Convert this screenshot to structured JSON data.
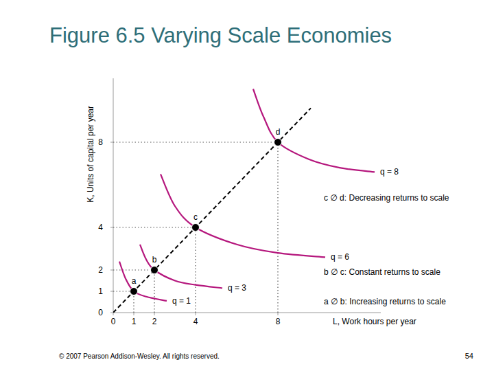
{
  "chart_data": {
    "type": "line",
    "title": "Figure 6.5 Varying Scale Economies",
    "xlabel": "L, Work hours per year",
    "ylabel": "K, Units of capital per year",
    "xlim": [
      0,
      13
    ],
    "ylim": [
      0,
      11
    ],
    "xticks": [
      0,
      1,
      2,
      4,
      8
    ],
    "yticks": [
      0,
      1,
      2,
      4,
      8
    ],
    "grid": false,
    "series": [
      {
        "name": "q = 1",
        "color": "#b5177d",
        "x": [
          0.3,
          0.6,
          1,
          1.6,
          2.6
        ],
        "values": [
          2.4,
          1.6,
          1,
          0.75,
          0.55
        ]
      },
      {
        "name": "q = 3",
        "color": "#b5177d",
        "x": [
          1.3,
          1.6,
          2,
          3,
          4,
          5.3
        ],
        "values": [
          3.2,
          2.5,
          2,
          1.5,
          1.3,
          1.15
        ]
      },
      {
        "name": "q = 6",
        "color": "#b5177d",
        "x": [
          2.3,
          3,
          4,
          6,
          8,
          10.3
        ],
        "values": [
          6.5,
          5,
          4,
          3.2,
          2.8,
          2.6
        ]
      },
      {
        "name": "q = 8",
        "color": "#b5177d",
        "x": [
          6.8,
          7.3,
          8,
          9.5,
          11,
          12.7
        ],
        "values": [
          10.5,
          9.2,
          8,
          7.2,
          6.8,
          6.6
        ]
      }
    ],
    "ray": {
      "x": [
        0,
        9.6
      ],
      "values": [
        0,
        9.6
      ],
      "color": "#000000",
      "line_style": "dashed"
    },
    "points": {
      "labels": [
        "a",
        "b",
        "c",
        "d"
      ],
      "x": [
        1,
        2,
        4,
        8
      ],
      "values": [
        1,
        2,
        4,
        8
      ],
      "color": "#000000",
      "marker": "circle"
    },
    "annotations": [
      "c ∅ d: Decreasing returns to scale",
      "b ∅ c: Constant returns to scale",
      "a ∅ b: Increasing returns to scale"
    ],
    "footer": "© 2007 Pearson Addison-Wesley. All rights reserved.",
    "page_number": "54"
  }
}
